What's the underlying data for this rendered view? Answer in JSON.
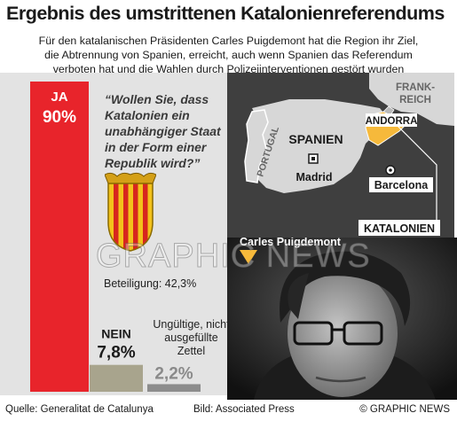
{
  "title": "Ergebnis des umstrittenen Katalonienreferendums",
  "subtitle_lines": [
    "Für den katalanischen Präsidenten Carles Puigdemont hat die Region ihr Ziel,",
    "die Abtrennung von Spanien, erreicht, auch wenn Spanien das Referendum",
    "verboten hat und die Wahlen durch Polizeiinterventionen gestört wurden"
  ],
  "question": "“Wollen Sie, dass Katalonien ein unabhängiger Staat in der Form einer Republik wird?”",
  "turnout": "Beteiligung: 42,3%",
  "invalid_text": "Ungültige, nicht ausge-füllte Zettel",
  "chart_data": {
    "type": "bar",
    "categories": [
      "JA",
      "NEIN",
      "Ungültige, nicht ausgefüllte Zettel"
    ],
    "values": [
      90,
      7.8,
      2.2
    ],
    "value_labels": [
      "90%",
      "7,8%",
      "2,2%"
    ],
    "colors": [
      "#e8242b",
      "#a8a48d",
      "#8c8c8c"
    ],
    "ylim": [
      0,
      100
    ]
  },
  "map": {
    "labels": {
      "frankreich": "FRANK-\nREICH",
      "andorra": "ANDORRA",
      "portugal": "PORTUGAL",
      "spanien": "SPANIEN",
      "madrid": "Madrid",
      "barcelona": "Barcelona",
      "katalonien": "KATALONIEN"
    },
    "colors": {
      "land": "#d7d7d7",
      "sea": "#3f3f3f",
      "catalonia": "#f6b93b"
    }
  },
  "photo_caption": "Carles Puigdemont",
  "watermark": "GRAPHIC NEWS",
  "footer": {
    "source": "Quelle: Generalitat de Catalunya",
    "photo": "Bild: Associated Press",
    "copyright": "© GRAPHIC NEWS"
  }
}
